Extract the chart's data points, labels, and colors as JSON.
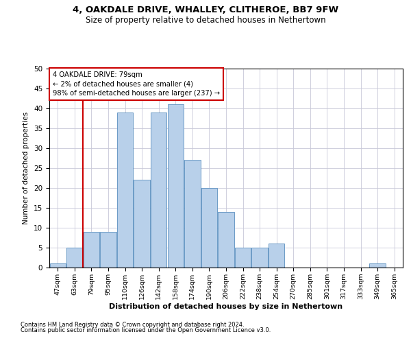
{
  "title1": "4, OAKDALE DRIVE, WHALLEY, CLITHEROE, BB7 9FW",
  "title2": "Size of property relative to detached houses in Nethertown",
  "xlabel": "Distribution of detached houses by size in Nethertown",
  "ylabel": "Number of detached properties",
  "footnote1": "Contains HM Land Registry data © Crown copyright and database right 2024.",
  "footnote2": "Contains public sector information licensed under the Open Government Licence v3.0.",
  "categories": [
    "47sqm",
    "63sqm",
    "79sqm",
    "95sqm",
    "110sqm",
    "126sqm",
    "142sqm",
    "158sqm",
    "174sqm",
    "190sqm",
    "206sqm",
    "222sqm",
    "238sqm",
    "254sqm",
    "270sqm",
    "285sqm",
    "301sqm",
    "317sqm",
    "333sqm",
    "349sqm",
    "365sqm"
  ],
  "values": [
    1,
    5,
    9,
    9,
    39,
    22,
    39,
    41,
    27,
    20,
    14,
    5,
    5,
    6,
    0,
    0,
    0,
    0,
    0,
    1,
    0
  ],
  "bar_color": "#b8d0ea",
  "bar_edge_color": "#5a8fbf",
  "highlight_color": "#cc0000",
  "annotation_title": "4 OAKDALE DRIVE: 79sqm",
  "annotation_line1": "← 2% of detached houses are smaller (4)",
  "annotation_line2": "98% of semi-detached houses are larger (237) →",
  "ylim": [
    0,
    50
  ],
  "yticks": [
    0,
    5,
    10,
    15,
    20,
    25,
    30,
    35,
    40,
    45,
    50
  ],
  "background_color": "#ffffff",
  "grid_color": "#c8c8d8"
}
